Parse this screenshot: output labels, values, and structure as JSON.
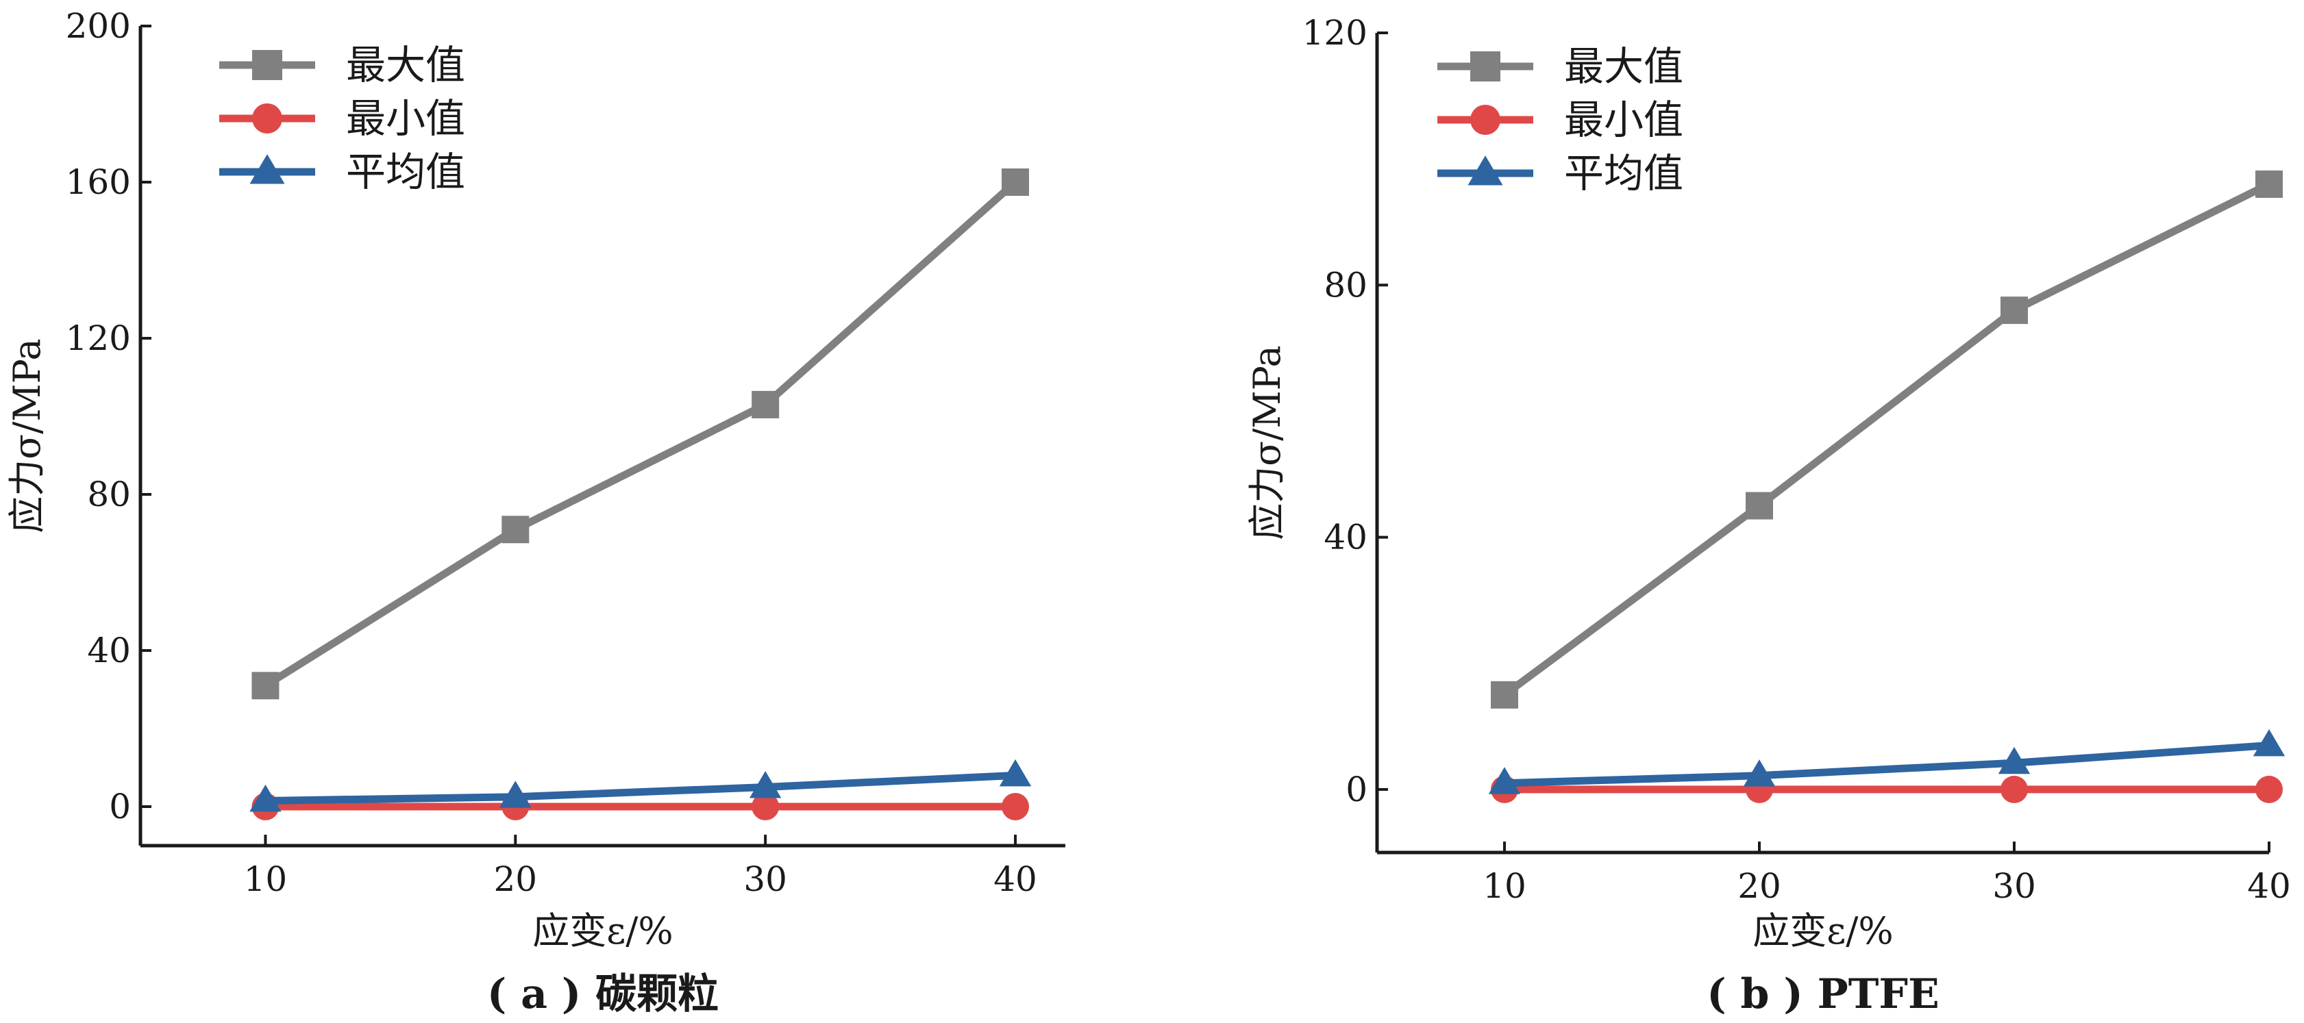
{
  "chart_data": [
    {
      "type": "line",
      "caption": "( a ) 碳颗粒",
      "xlabel": "应变ε/%",
      "ylabel": "应力σ/MPa",
      "x": [
        10,
        20,
        30,
        40
      ],
      "xlim": [
        5,
        42
      ],
      "ylim": [
        -10,
        200
      ],
      "xticks": [
        10,
        20,
        30,
        40
      ],
      "yticks": [
        0,
        40,
        80,
        120,
        160,
        200
      ],
      "legend_position": "top-left",
      "grid": false,
      "series": [
        {
          "name": "最大值",
          "marker": "square",
          "color": "#808080",
          "values": [
            31,
            71,
            103,
            160
          ]
        },
        {
          "name": "最小值",
          "marker": "circle",
          "color": "#e04848",
          "values": [
            0,
            0,
            0,
            0
          ]
        },
        {
          "name": "平均值",
          "marker": "triangle",
          "color": "#2e64a0",
          "values": [
            1.5,
            2.5,
            5,
            8
          ]
        }
      ]
    },
    {
      "type": "line",
      "caption": "( b ) PTFE",
      "xlabel": "应变ε/%",
      "ylabel": "应力σ/MPa",
      "x": [
        10,
        20,
        30,
        40
      ],
      "xlim": [
        5,
        40
      ],
      "ylim": [
        -10,
        120
      ],
      "xticks": [
        10,
        20,
        30,
        40
      ],
      "yticks": [
        0,
        40,
        80,
        120
      ],
      "legend_position": "top-left",
      "grid": false,
      "series": [
        {
          "name": "最大值",
          "marker": "square",
          "color": "#808080",
          "values": [
            15,
            45,
            76,
            96
          ]
        },
        {
          "name": "最小值",
          "marker": "circle",
          "color": "#e04848",
          "values": [
            0,
            0,
            0,
            0
          ]
        },
        {
          "name": "平均值",
          "marker": "triangle",
          "color": "#2e64a0",
          "values": [
            1,
            2.2,
            4.2,
            7
          ]
        }
      ]
    }
  ]
}
